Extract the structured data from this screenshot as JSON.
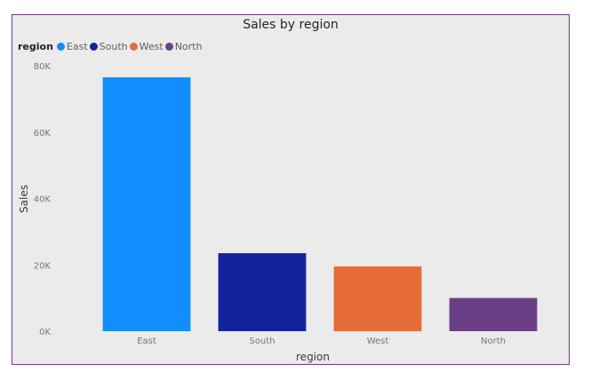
{
  "chart_data": {
    "type": "bar",
    "title": "Sales by region",
    "legend_title": "region",
    "categories": [
      "East",
      "South",
      "West",
      "North"
    ],
    "values": [
      76500,
      23500,
      19500,
      10000
    ],
    "colors": [
      "#118dff",
      "#12239e",
      "#e66c37",
      "#6b3f86"
    ],
    "xlabel": "region",
    "ylabel": "Sales",
    "ylim": [
      0,
      80000
    ],
    "yticks": [
      0,
      20000,
      40000,
      60000,
      80000
    ],
    "ytick_labels": [
      "0K",
      "20K",
      "40K",
      "60K",
      "80K"
    ],
    "grid": false,
    "legend_position": "top-left"
  }
}
